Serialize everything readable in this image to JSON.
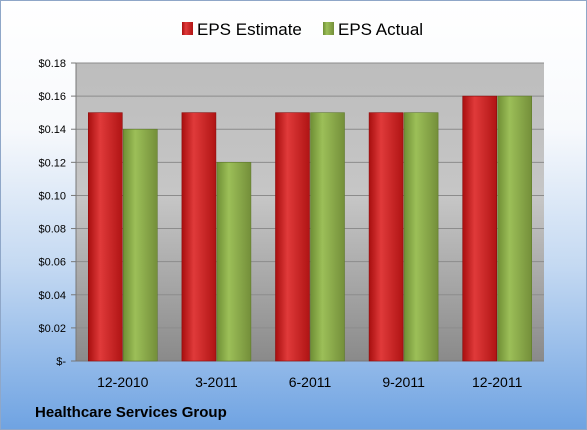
{
  "chart_data": {
    "type": "bar",
    "categories": [
      "12-2010",
      "3-2011",
      "6-2011",
      "9-2011",
      "12-2011"
    ],
    "series": [
      {
        "name": "EPS Estimate",
        "color": "#d42020",
        "values": [
          0.15,
          0.15,
          0.15,
          0.15,
          0.16
        ]
      },
      {
        "name": "EPS Actual",
        "color": "#8db24a",
        "values": [
          0.14,
          0.12,
          0.15,
          0.15,
          0.16
        ]
      }
    ],
    "ylim": [
      0,
      0.18
    ],
    "yticks": [
      {
        "value": 0,
        "label": "$-"
      },
      {
        "value": 0.02,
        "label": "$0.02"
      },
      {
        "value": 0.04,
        "label": "$0.04"
      },
      {
        "value": 0.06,
        "label": "$0.06"
      },
      {
        "value": 0.08,
        "label": "$0.08"
      },
      {
        "value": 0.1,
        "label": "$0.10"
      },
      {
        "value": 0.12,
        "label": "$0.12"
      },
      {
        "value": 0.14,
        "label": "$0.14"
      },
      {
        "value": 0.16,
        "label": "$0.16"
      },
      {
        "value": 0.18,
        "label": "$0.18"
      }
    ],
    "grid": true,
    "legend": "top",
    "company": "Healthcare Services Group"
  }
}
